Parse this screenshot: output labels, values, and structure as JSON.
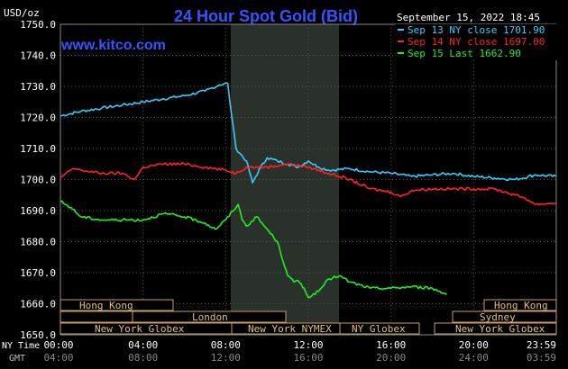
{
  "header": {
    "title": "24 Hour Spot Gold (Bid)",
    "units": "USD/oz",
    "site": "www.kitco.com",
    "timestamp": "September 15, 2022 18:45"
  },
  "legend": [
    {
      "text": "Sep 13 NY close 1701.90",
      "color": "#33ccff"
    },
    {
      "text": "Sep 14 NY close 1697.00",
      "color": "#ff2222"
    },
    {
      "text": "Sep 15 Last 1662.90",
      "color": "#22ee22"
    }
  ],
  "markets": {
    "hong_kong_1": "Hong Kong",
    "london": "London",
    "new_york_globex_1": "New York Globex",
    "new_york_nymex": "New York NYMEX",
    "ny_globex": "NY Globex",
    "hong_kong_2": "Hong Kong",
    "sydney": "Sydney",
    "new_york_globex_2": "New York Globex"
  },
  "axis_labels": {
    "ny_time": "NY Time",
    "gmt": "GMT"
  },
  "chart_data": {
    "type": "line",
    "title": "24 Hour Spot Gold (Bid)",
    "ylabel": "USD/oz",
    "ylim": [
      1650,
      1750
    ],
    "yticks": [
      "1750.0",
      "1740.0",
      "1730.0",
      "1720.0",
      "1710.0",
      "1700.0",
      "1690.0",
      "1680.0",
      "1670.0",
      "1660.0",
      "1650.0"
    ],
    "xlim": [
      0,
      24
    ],
    "x_ny_ticks": [
      "00:00",
      "04:00",
      "08:00",
      "12:00",
      "16:00",
      "20:00",
      "23:59"
    ],
    "x_gmt_ticks": [
      "04:00",
      "08:00",
      "12:00",
      "16:00",
      "20:00",
      "24:00",
      "03:59"
    ],
    "grid": true,
    "series": [
      {
        "name": "Sep 13 NY close 1701.90",
        "color": "#33ccff",
        "x": [
          0,
          1,
          2,
          3,
          4,
          5,
          6,
          7,
          7.7,
          8.1,
          8.3,
          8.5,
          9,
          9.3,
          9.7,
          10,
          10.5,
          11,
          11.5,
          12,
          12.5,
          13,
          14,
          15,
          16,
          17,
          18,
          19,
          20,
          21,
          22,
          23,
          23.98
        ],
        "y": [
          1720.5,
          1722,
          1723,
          1724,
          1725,
          1726,
          1727,
          1728.5,
          1730.5,
          1731,
          1720,
          1710,
          1706,
          1699,
          1704,
          1707,
          1706,
          1705,
          1704,
          1706,
          1704,
          1703,
          1703.5,
          1702.5,
          1702,
          1701,
          1701.5,
          1702,
          1701,
          1700.5,
          1700,
          1701.5,
          1701
        ]
      },
      {
        "name": "Sep 14 NY close 1697.00",
        "color": "#ff2222",
        "x": [
          0,
          0.6,
          1,
          2,
          3,
          3.6,
          4,
          5,
          6,
          7,
          8,
          8.5,
          9,
          10,
          11,
          12,
          13,
          14,
          15,
          16,
          16.5,
          17,
          18,
          19,
          20,
          21,
          22,
          22.5,
          23,
          23.98
        ],
        "y": [
          1700.5,
          1703.5,
          1703,
          1702,
          1702,
          1700,
          1704,
          1705,
          1705,
          1704,
          1703,
          1702,
          1704,
          1704,
          1705,
          1704,
          1702,
          1700,
          1697,
          1696,
          1694.5,
          1696.5,
          1697,
          1697,
          1697,
          1697,
          1695,
          1694,
          1692,
          1692.5
        ]
      },
      {
        "name": "Sep 15 Last 1662.90",
        "color": "#22ee22",
        "x": [
          0,
          0.5,
          1,
          2,
          3,
          4,
          5,
          6,
          7,
          7.5,
          8,
          8.6,
          8.8,
          9,
          9.5,
          10,
          10.5,
          11,
          11.3,
          11.5,
          11.8,
          12,
          12.5,
          13,
          13.5,
          14,
          15,
          16,
          17,
          18,
          18.7
        ],
        "y": [
          1693,
          1691,
          1688,
          1687,
          1687,
          1687,
          1689,
          1688,
          1686,
          1684,
          1687,
          1692,
          1687,
          1685,
          1688,
          1684,
          1680,
          1669,
          1667,
          1667.5,
          1665,
          1662,
          1664,
          1668,
          1669,
          1667,
          1665,
          1665,
          1665.5,
          1665,
          1663
        ]
      }
    ]
  }
}
